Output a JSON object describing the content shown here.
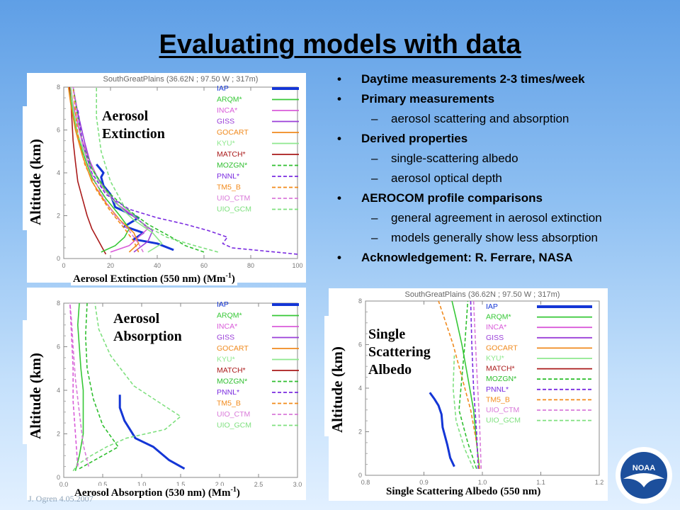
{
  "title": "Evaluating models with data",
  "bullets": [
    {
      "level": 1,
      "text": "Daytime measurements 2-3 times/week"
    },
    {
      "level": 1,
      "text": "Primary measurements"
    },
    {
      "level": 2,
      "text": "aerosol scattering and absorption"
    },
    {
      "level": 1,
      "text": "Derived properties"
    },
    {
      "level": 2,
      "text": "single-scattering albedo"
    },
    {
      "level": 2,
      "text": "aerosol optical depth"
    },
    {
      "level": 1,
      "text": "AEROCOM profile comparisons"
    },
    {
      "level": 2,
      "text": "general agreement in aerosol extinction"
    },
    {
      "level": 2,
      "text": "models generally show less absorption"
    },
    {
      "level": 1,
      "text": "Acknowledgement: R. Ferrare, NASA"
    }
  ],
  "footer": "J. Ogren  4.05.2007",
  "logo_text": "NOAA",
  "colors": {
    "IAP": "#1436d6",
    "ARQM": "#36c836",
    "INCA": "#d95bd9",
    "GISS": "#9a3fd8",
    "GOCART": "#f08a1e",
    "KYU": "#8ee88e",
    "MATCH": "#aa1a1a",
    "MOZGN": "#2fbf2f",
    "PNNL": "#7a2be0",
    "TM5_B": "#f28a1a",
    "UIO_CTM": "#d97ad9",
    "UIO_GCM": "#7fe07f"
  },
  "chart_data": [
    {
      "type": "line",
      "id": "extinction",
      "title": "SouthGreatPlains (36.62N ; 97.50 W ; 317m)",
      "panel_label": [
        "Aerosol",
        "Extinction"
      ],
      "xlabel": "Aerosol Extinction (550 nm) (Mm",
      "xlabel_sup": "-1",
      "xlabel_tail": ")",
      "ylabel": "Altitude (km)",
      "xlim": [
        0,
        100
      ],
      "ylim": [
        0,
        8
      ],
      "xticks": [
        0,
        20,
        40,
        60,
        80,
        100
      ],
      "yticks": [
        0,
        2,
        4,
        6,
        8
      ],
      "legend": [
        "IAP",
        "ARQM*",
        "INCA*",
        "GISS",
        "GOCART",
        "KYU*",
        "MATCH*",
        "MOZGN*",
        "PNNL*",
        "TM5_B",
        "UIO_CTM",
        "UIO_GCM"
      ],
      "legend_styles": [
        "solid",
        "solid",
        "solid",
        "solid",
        "solid",
        "solid",
        "solid",
        "dash",
        "dash",
        "dash",
        "dash",
        "dash"
      ],
      "series": [
        {
          "name": "IAP",
          "style": "solid",
          "width": 3,
          "x": [
            47,
            40,
            30,
            34,
            26,
            32,
            22,
            20,
            17,
            16,
            17,
            14
          ],
          "y": [
            0.4,
            0.7,
            0.9,
            1.2,
            1.5,
            1.9,
            2.4,
            3.0,
            3.4,
            3.8,
            4.0,
            4.4
          ]
        },
        {
          "name": "MATCH*",
          "style": "solid",
          "x": [
            18,
            15,
            12,
            10,
            8,
            6,
            5,
            4,
            3.5,
            3,
            2.5
          ],
          "y": [
            0.2,
            0.8,
            1.4,
            2.0,
            2.8,
            3.6,
            4.5,
            5.5,
            6.5,
            7.4,
            8.0
          ]
        },
        {
          "name": "ARQM*",
          "style": "solid",
          "x": [
            16,
            22,
            26,
            28,
            24,
            18,
            12,
            8,
            5,
            3,
            2
          ],
          "y": [
            0.3,
            0.6,
            1.0,
            1.4,
            2.0,
            2.8,
            3.8,
            5.0,
            6.2,
            7.4,
            8.0
          ]
        },
        {
          "name": "INCA*",
          "style": "solid",
          "x": [
            20,
            28,
            32,
            36,
            30,
            22,
            16,
            11,
            7,
            4,
            3
          ],
          "y": [
            0.3,
            0.6,
            1.0,
            1.4,
            2.0,
            2.6,
            3.4,
            4.6,
            5.8,
            7.2,
            8.0
          ]
        },
        {
          "name": "GISS",
          "style": "solid",
          "x": [
            30,
            36,
            38,
            32,
            24,
            18,
            12,
            9,
            6,
            4
          ],
          "y": [
            0.3,
            0.8,
            1.3,
            1.8,
            2.4,
            3.2,
            4.2,
            5.4,
            6.8,
            8.0
          ]
        },
        {
          "name": "GOCART",
          "style": "solid",
          "x": [
            28,
            32,
            30,
            24,
            18,
            12,
            8,
            5,
            3,
            2
          ],
          "y": [
            0.3,
            0.7,
            1.2,
            1.8,
            2.6,
            3.6,
            4.8,
            6.0,
            7.2,
            8.0
          ]
        },
        {
          "name": "KYU*",
          "style": "solid",
          "x": [
            36,
            42,
            38,
            30,
            22,
            15,
            10,
            6,
            4,
            3
          ],
          "y": [
            0.3,
            0.7,
            1.2,
            1.8,
            2.6,
            3.6,
            4.6,
            5.8,
            7.0,
            8.0
          ]
        },
        {
          "name": "MOZGN*",
          "style": "dash",
          "x": [
            60,
            52,
            46,
            36,
            26,
            18,
            12,
            8,
            6,
            4
          ],
          "y": [
            0.3,
            0.6,
            1.0,
            1.6,
            2.4,
            3.2,
            4.2,
            5.4,
            6.6,
            8.0
          ]
        },
        {
          "name": "PNNL*",
          "style": "dash",
          "x": [
            100,
            72,
            68,
            70,
            62,
            52,
            40,
            28,
            18,
            12,
            8,
            6
          ],
          "y": [
            0.2,
            0.5,
            0.7,
            1.0,
            1.3,
            1.6,
            1.9,
            2.3,
            3.0,
            4.0,
            5.4,
            7.0
          ]
        },
        {
          "name": "TM5_B",
          "style": "dash",
          "x": [
            32,
            30,
            26,
            20,
            14,
            9,
            6,
            4
          ],
          "y": [
            0.3,
            0.8,
            1.4,
            2.2,
            3.2,
            4.4,
            5.8,
            8.0
          ]
        },
        {
          "name": "UIO_CTM",
          "style": "dash",
          "x": [
            34,
            32,
            28,
            22,
            16,
            11,
            7,
            4
          ],
          "y": [
            0.3,
            0.7,
            1.3,
            2.0,
            3.0,
            4.2,
            5.8,
            8.0
          ]
        },
        {
          "name": "UIO_GCM",
          "style": "dash",
          "x": [
            66,
            56,
            44,
            34,
            26,
            20,
            16,
            14,
            14
          ],
          "y": [
            0.3,
            0.6,
            1.0,
            1.6,
            2.4,
            3.6,
            5.0,
            6.6,
            8.0
          ]
        }
      ]
    },
    {
      "type": "line",
      "id": "absorption",
      "title": "",
      "panel_label": [
        "Aerosol",
        "Absorption"
      ],
      "xlabel": "Aerosol Absorption (530 nm) (Mm",
      "xlabel_sup": "-1",
      "xlabel_tail": ")",
      "ylabel": "Altitude (km)",
      "xlim": [
        0,
        3
      ],
      "ylim": [
        0,
        8
      ],
      "xticks": [
        "0.0",
        "0.5",
        "1.0",
        "1.5",
        "2.0",
        "2.5",
        "3.0"
      ],
      "yticks": [
        0,
        2,
        4,
        6,
        8
      ],
      "legend": [
        "IAP",
        "ARQM*",
        "INCA*",
        "GISS",
        "GOCART",
        "KYU*",
        "MATCH*",
        "MOZGN*",
        "PNNL*",
        "TM5_B",
        "UIO_CTM",
        "UIO_GCM"
      ],
      "legend_styles": [
        "solid",
        "solid",
        "solid",
        "solid",
        "solid",
        "solid",
        "solid",
        "dash",
        "dash",
        "dash",
        "dash",
        "dash"
      ],
      "series": [
        {
          "name": "IAP",
          "style": "solid",
          "width": 3,
          "x": [
            1.55,
            1.35,
            1.15,
            0.92,
            0.85,
            0.78,
            0.72,
            0.72
          ],
          "y": [
            0.4,
            0.8,
            1.4,
            1.8,
            2.2,
            2.6,
            3.2,
            3.8
          ]
        },
        {
          "name": "ARQM*",
          "style": "solid",
          "x": [
            0.15,
            0.2,
            0.25,
            0.25,
            0.25,
            0.22,
            0.2,
            0.18,
            0.2
          ],
          "y": [
            0.3,
            1.0,
            2.0,
            3.0,
            4.0,
            5.0,
            6.0,
            7.0,
            8.0
          ]
        },
        {
          "name": "UIO_GCM",
          "style": "dash",
          "x": [
            0.12,
            0.18,
            0.35,
            0.55,
            0.8,
            1.3,
            1.5,
            0.9,
            0.6,
            0.45,
            0.4
          ],
          "y": [
            0.3,
            0.6,
            1.0,
            1.4,
            1.8,
            2.2,
            2.8,
            4.2,
            5.6,
            6.8,
            8.0
          ]
        },
        {
          "name": "MOZGN*",
          "style": "dash",
          "x": [
            0.2,
            0.45,
            0.7,
            0.5,
            0.38,
            0.3,
            0.28,
            0.3
          ],
          "y": [
            0.4,
            0.9,
            1.4,
            2.4,
            3.6,
            5.0,
            6.5,
            8.0
          ]
        },
        {
          "name": "UIO_CTM",
          "style": "dash",
          "x": [
            0.32,
            0.25,
            0.2,
            0.15,
            0.12,
            0.1,
            0.08
          ],
          "y": [
            0.5,
            1.5,
            3.0,
            4.5,
            6.0,
            7.2,
            8.0
          ]
        },
        {
          "name": "INCA*",
          "style": "dash",
          "x": [
            0.18,
            0.15,
            0.12,
            0.12,
            0.1,
            0.08
          ],
          "y": [
            0.5,
            2.0,
            3.5,
            5.0,
            6.5,
            8.0
          ]
        }
      ]
    },
    {
      "type": "line",
      "id": "albedo",
      "title": "SouthGreatPlains (36.62N ; 97.50 W ; 317m)",
      "panel_label": [
        "Single",
        "Scattering",
        "Albedo"
      ],
      "xlabel": "Single Scattering Albedo (550 nm)",
      "xlabel_sup": "",
      "xlabel_tail": "",
      "ylabel": "Altitude (km)",
      "xlim": [
        0.8,
        1.2
      ],
      "ylim": [
        0,
        8
      ],
      "xticks": [
        "0.8",
        "0.9",
        "1.0",
        "1.1",
        "1.2"
      ],
      "yticks": [
        0,
        2,
        4,
        6,
        8
      ],
      "legend": [
        "IAP",
        "ARQM*",
        "INCA*",
        "GISS",
        "GOCART",
        "KYU*",
        "MATCH*",
        "MOZGN*",
        "PNNL*",
        "TM5_B",
        "UIO_CTM",
        "UIO_GCM"
      ],
      "legend_styles": [
        "solid",
        "solid",
        "solid",
        "solid",
        "solid",
        "solid",
        "solid",
        "dash",
        "dash",
        "dash",
        "dash",
        "dash"
      ],
      "series": [
        {
          "name": "IAP",
          "style": "solid",
          "width": 3,
          "x": [
            0.952,
            0.945,
            0.94,
            0.932,
            0.93,
            0.925,
            0.918,
            0.91
          ],
          "y": [
            0.4,
            0.8,
            1.4,
            2.2,
            2.8,
            3.2,
            3.5,
            3.8
          ]
        },
        {
          "name": "ARQM*",
          "style": "solid",
          "x": [
            0.995,
            0.99,
            0.985,
            0.975,
            0.965,
            0.955,
            0.948
          ],
          "y": [
            0.3,
            1.5,
            3.0,
            4.5,
            6.0,
            7.2,
            8.0
          ]
        },
        {
          "name": "GOCART",
          "style": "dash",
          "x": [
            0.995,
            0.99,
            0.98,
            0.965,
            0.95,
            0.935,
            0.925
          ],
          "y": [
            0.3,
            1.5,
            3.0,
            4.5,
            6.0,
            7.2,
            8.0
          ]
        },
        {
          "name": "PNNL*",
          "style": "dash",
          "x": [
            0.993,
            0.99,
            0.985,
            0.982,
            0.98
          ],
          "y": [
            0.3,
            2.0,
            4.0,
            6.0,
            8.0
          ]
        },
        {
          "name": "UIO_CTM",
          "style": "dash",
          "x": [
            0.998,
            0.995,
            0.99,
            0.985
          ],
          "y": [
            0.3,
            2.5,
            5.0,
            8.0
          ]
        },
        {
          "name": "MOZGN*",
          "style": "dash",
          "x": [
            0.99,
            0.975,
            0.96,
            0.965,
            0.97,
            0.975
          ],
          "y": [
            0.3,
            1.5,
            3.0,
            4.5,
            6.0,
            8.0
          ]
        },
        {
          "name": "UIO_GCM",
          "style": "dash",
          "x": [
            0.985,
            0.97,
            0.955,
            0.95,
            0.952
          ],
          "y": [
            0.3,
            1.2,
            2.5,
            4.0,
            5.5
          ]
        }
      ]
    }
  ]
}
